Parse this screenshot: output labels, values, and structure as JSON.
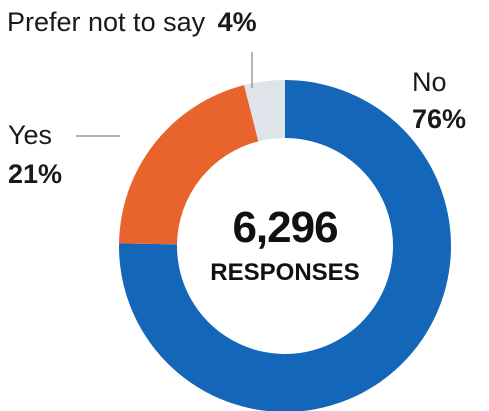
{
  "chart_data": {
    "type": "pie",
    "center": {
      "value": "6,296",
      "label": "RESPONSES"
    },
    "slices": [
      {
        "label": "No",
        "pct_label": "76%",
        "value": 76,
        "color": "#1466b8"
      },
      {
        "label": "Yes",
        "pct_label": "21%",
        "value": 21,
        "color": "#e8642c"
      },
      {
        "label": "Prefer not to say",
        "pct_label": "4%",
        "value": 4,
        "color": "#dfe4ea"
      }
    ]
  }
}
